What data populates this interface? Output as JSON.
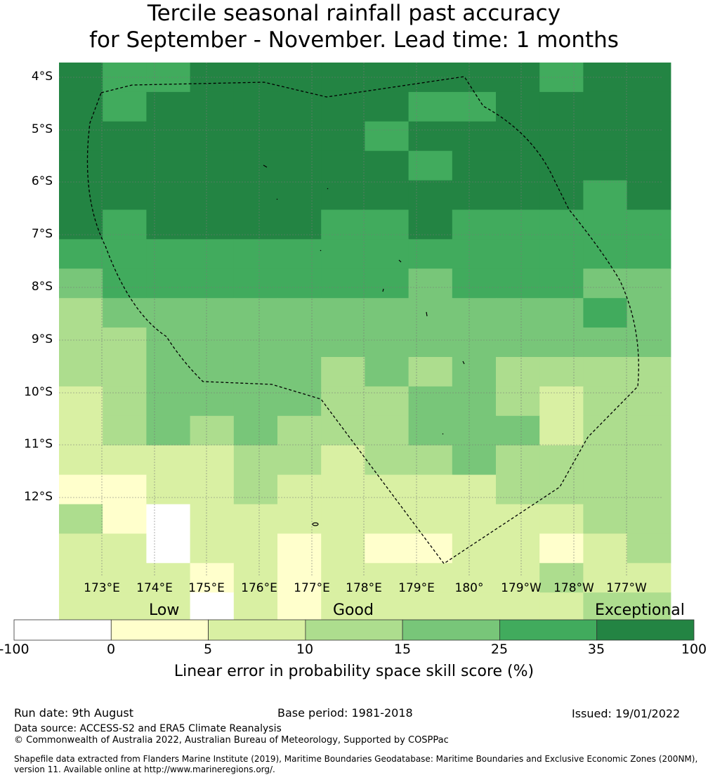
{
  "title": {
    "line1": "Tercile seasonal rainfall past accuracy",
    "line2": "for September - November. Lead time: 1 months"
  },
  "map": {
    "lat_labels": [
      "4°S",
      "5°S",
      "6°S",
      "7°S",
      "8°S",
      "9°S",
      "10°S",
      "11°S",
      "12°S"
    ],
    "lon_labels": [
      "173°E",
      "174°E",
      "175°E",
      "176°E",
      "177°E",
      "178°E",
      "179°E",
      "180°",
      "179°W",
      "178°W",
      "177°W"
    ],
    "grid_values": [
      [
        35,
        30,
        30,
        35,
        35,
        35,
        35,
        35,
        35,
        35,
        35,
        30,
        35,
        35
      ],
      [
        35,
        30,
        35,
        35,
        35,
        35,
        35,
        35,
        30,
        30,
        35,
        35,
        35,
        35
      ],
      [
        35,
        35,
        35,
        35,
        35,
        35,
        35,
        30,
        35,
        35,
        35,
        35,
        35,
        35
      ],
      [
        35,
        35,
        35,
        35,
        35,
        35,
        35,
        35,
        30,
        35,
        35,
        35,
        35,
        35
      ],
      [
        35,
        35,
        35,
        35,
        35,
        35,
        35,
        35,
        35,
        35,
        35,
        35,
        30,
        35
      ],
      [
        35,
        30,
        35,
        35,
        35,
        35,
        30,
        30,
        35,
        30,
        30,
        30,
        30,
        30
      ],
      [
        30,
        30,
        30,
        30,
        30,
        30,
        30,
        30,
        30,
        30,
        30,
        30,
        30,
        30
      ],
      [
        20,
        30,
        30,
        30,
        30,
        30,
        30,
        30,
        20,
        30,
        30,
        30,
        20,
        20
      ],
      [
        12,
        20,
        20,
        20,
        20,
        20,
        20,
        20,
        20,
        20,
        20,
        20,
        30,
        20
      ],
      [
        12,
        12,
        20,
        20,
        20,
        20,
        20,
        20,
        20,
        20,
        20,
        20,
        20,
        20
      ],
      [
        12,
        12,
        20,
        20,
        20,
        20,
        12,
        20,
        12,
        20,
        12,
        12,
        12,
        12
      ],
      [
        7,
        12,
        20,
        20,
        20,
        20,
        12,
        12,
        20,
        20,
        12,
        7,
        12,
        12
      ],
      [
        7,
        12,
        20,
        12,
        20,
        12,
        12,
        12,
        20,
        20,
        20,
        7,
        12,
        12
      ],
      [
        7,
        7,
        7,
        7,
        12,
        12,
        7,
        12,
        12,
        20,
        12,
        12,
        12,
        12
      ],
      [
        3,
        3,
        7,
        7,
        12,
        7,
        7,
        7,
        7,
        7,
        12,
        12,
        12,
        12
      ],
      [
        12,
        3,
        -50,
        7,
        7,
        7,
        7,
        7,
        7,
        7,
        7,
        7,
        12,
        12
      ],
      [
        7,
        7,
        -50,
        7,
        7,
        3,
        7,
        3,
        3,
        7,
        7,
        3,
        7,
        12
      ],
      [
        7,
        7,
        7,
        3,
        7,
        3,
        7,
        7,
        7,
        7,
        7,
        12,
        7,
        7
      ],
      [
        7,
        7,
        7,
        -50,
        7,
        3,
        7,
        7,
        7,
        7,
        7,
        7,
        12,
        12
      ]
    ]
  },
  "legend": {
    "categories": {
      "low": "Low",
      "good": "Good",
      "exceptional": "Exceptional"
    },
    "bins": [
      {
        "from": -100,
        "to": 0,
        "color": "#ffffff"
      },
      {
        "from": 0,
        "to": 5,
        "color": "#ffffcc"
      },
      {
        "from": 5,
        "to": 10,
        "color": "#d9f0a3"
      },
      {
        "from": 10,
        "to": 15,
        "color": "#addd8e"
      },
      {
        "from": 15,
        "to": 25,
        "color": "#78c679"
      },
      {
        "from": 25,
        "to": 35,
        "color": "#41ab5d"
      },
      {
        "from": 35,
        "to": 100,
        "color": "#238443"
      }
    ],
    "ticks": [
      "-100",
      "0",
      "5",
      "10",
      "15",
      "25",
      "35",
      "100"
    ],
    "label": "Linear error in probability space skill score (%)"
  },
  "footer": {
    "run_date": "Run date: 9th August",
    "base_period": "Base period: 1981-2018",
    "issued": "Issued: 19/01/2022",
    "data_source": "Data source: ACCESS-S2 and ERA5 Climate Reanalysis",
    "copyright": "© Commonwealth of Australia 2022, Australian Bureau of Meteorology, Supported by COSPPac",
    "shapefile_line1": "Shapefile data extracted from Flanders Marine Institute (2019), Maritime Boundaries Geodatabase: Maritime Boundaries and Exclusive Economic Zones (200NM),",
    "shapefile_line2": "version 11. Available online at http://www.marineregions.org/."
  }
}
